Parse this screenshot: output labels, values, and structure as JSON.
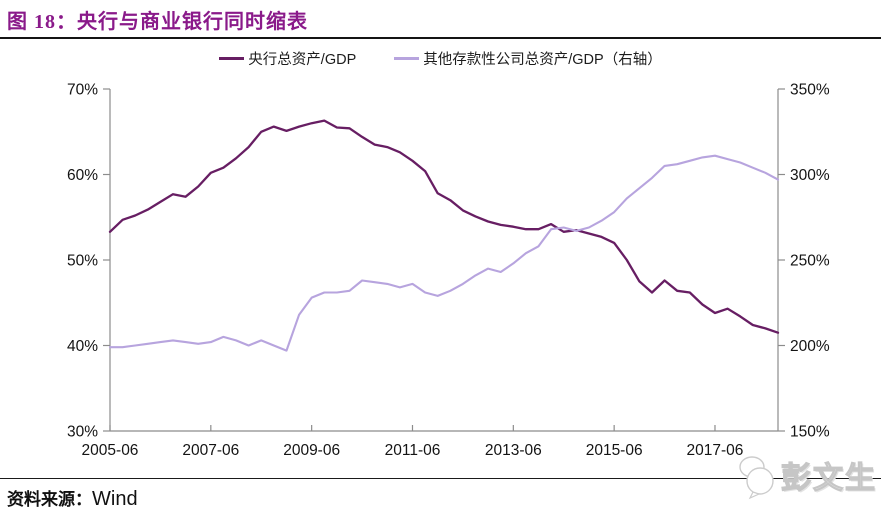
{
  "header": {
    "figure_label": "图 18：",
    "title": "央行与商业银行同时缩表",
    "title_color": "#8A1A8A"
  },
  "legend": {
    "items": [
      {
        "label": "央行总资产/GDP",
        "color": "#671E63"
      },
      {
        "label": "其他存款性公司总资产/GDP（右轴）",
        "color": "#B7A4DE"
      }
    ]
  },
  "source": {
    "prefix": "资料来源：",
    "name": "Wind"
  },
  "watermark": {
    "text": "彭文生",
    "icon": "overlapping-bubbles-icon"
  },
  "chart_data": {
    "type": "line",
    "title": "央行与商业银行同时缩表",
    "grid": false,
    "legend_position": "top",
    "axis_color": "#8c8c8c",
    "categories": [
      "2005-06",
      "2005-09",
      "2005-12",
      "2006-03",
      "2006-06",
      "2006-09",
      "2006-12",
      "2007-03",
      "2007-06",
      "2007-09",
      "2007-12",
      "2008-03",
      "2008-06",
      "2008-09",
      "2008-12",
      "2009-03",
      "2009-06",
      "2009-09",
      "2009-12",
      "2010-03",
      "2010-06",
      "2010-09",
      "2010-12",
      "2011-03",
      "2011-06",
      "2011-09",
      "2011-12",
      "2012-03",
      "2012-06",
      "2012-09",
      "2012-12",
      "2013-03",
      "2013-06",
      "2013-09",
      "2013-12",
      "2014-03",
      "2014-06",
      "2014-09",
      "2014-12",
      "2015-03",
      "2015-06",
      "2015-09",
      "2015-12",
      "2016-03",
      "2016-06",
      "2016-09",
      "2016-12",
      "2017-03",
      "2017-06",
      "2017-09",
      "2017-12",
      "2018-03",
      "2018-06",
      "2018-09"
    ],
    "series": [
      {
        "name": "央行总资产/GDP",
        "axis": "left",
        "unit": "%",
        "color": "#671E63",
        "width": 2.3,
        "values": [
          53.3,
          54.7,
          55.2,
          55.9,
          56.8,
          57.7,
          57.4,
          58.6,
          60.2,
          60.8,
          61.9,
          63.2,
          65.0,
          65.6,
          65.1,
          65.6,
          66.0,
          66.3,
          65.5,
          65.4,
          64.4,
          63.5,
          63.2,
          62.6,
          61.6,
          60.4,
          57.8,
          57.0,
          55.8,
          55.1,
          54.5,
          54.1,
          53.9,
          53.6,
          53.6,
          54.2,
          53.3,
          53.5,
          53.1,
          52.7,
          52.0,
          50.0,
          47.5,
          46.2,
          47.6,
          46.4,
          46.2,
          44.8,
          43.8,
          44.3,
          43.4,
          42.4,
          42.0,
          41.5
        ]
      },
      {
        "name": "其他存款性公司总资产/GDP（右轴）",
        "axis": "right",
        "unit": "%",
        "color": "#B7A4DE",
        "width": 2.1,
        "values": [
          199,
          199,
          200,
          201,
          202,
          203,
          202,
          201,
          202,
          205,
          203,
          200,
          203,
          200,
          197,
          218,
          228,
          231,
          231,
          232,
          238,
          237,
          236,
          234,
          236,
          231,
          229,
          232,
          236,
          241,
          245,
          243,
          248,
          254,
          258,
          268,
          269,
          267,
          269,
          273,
          278,
          286,
          292,
          298,
          305,
          306,
          308,
          310,
          311,
          309,
          307,
          304,
          301,
          297
        ]
      }
    ],
    "left_axis": {
      "min": 30,
      "max": 70,
      "ticks": [
        "70%",
        "60%",
        "50%",
        "40%",
        "30%"
      ]
    },
    "right_axis": {
      "min": 150,
      "max": 350,
      "ticks": [
        "350%",
        "300%",
        "250%",
        "200%",
        "150%"
      ]
    },
    "x_ticks": [
      "2005-06",
      "2007-06",
      "2009-06",
      "2011-06",
      "2013-06",
      "2015-06",
      "2017-06"
    ]
  }
}
